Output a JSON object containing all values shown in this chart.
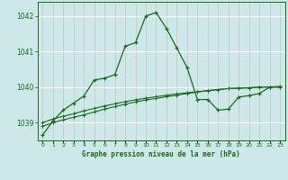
{
  "title": "Graphe pression niveau de la mer (hPa)",
  "bg_color": "#cce8e8",
  "plot_bg_color": "#cce8e8",
  "line_color": "#1a6b1a",
  "grid_color_v": "#ddb8b8",
  "grid_color_h": "#ffffff",
  "xlim": [
    -0.5,
    23.5
  ],
  "ylim": [
    1038.5,
    1042.4
  ],
  "yticks": [
    1039,
    1040,
    1041,
    1042
  ],
  "xticks": [
    0,
    1,
    2,
    3,
    4,
    5,
    6,
    7,
    8,
    9,
    10,
    11,
    12,
    13,
    14,
    15,
    16,
    17,
    18,
    19,
    20,
    21,
    22,
    23
  ],
  "series1_x": [
    0,
    1,
    2,
    3,
    4,
    5,
    6,
    7,
    8,
    9,
    10,
    11,
    12,
    13,
    14,
    15,
    16,
    17,
    18,
    19,
    20,
    21,
    22,
    23
  ],
  "series1_y": [
    1038.65,
    1039.05,
    1039.35,
    1039.55,
    1039.75,
    1040.2,
    1040.25,
    1040.35,
    1041.15,
    1041.25,
    1042.0,
    1042.1,
    1041.65,
    1041.1,
    1040.55,
    1039.65,
    1039.65,
    1039.35,
    1039.38,
    1039.72,
    1039.76,
    1039.82,
    1040.0,
    1040.02
  ],
  "series2_x": [
    0,
    1,
    2,
    3,
    4,
    5,
    6,
    7,
    8,
    9,
    10,
    11,
    12,
    13,
    14,
    15,
    16,
    17,
    18,
    19,
    20,
    21,
    22,
    23
  ],
  "series2_y": [
    1038.9,
    1039.0,
    1039.08,
    1039.15,
    1039.22,
    1039.3,
    1039.38,
    1039.45,
    1039.52,
    1039.58,
    1039.64,
    1039.68,
    1039.73,
    1039.77,
    1039.82,
    1039.86,
    1039.9,
    1039.93,
    1039.96,
    1039.97,
    1039.98,
    1040.0,
    1040.0,
    1040.0
  ],
  "series3_x": [
    0,
    1,
    2,
    3,
    4,
    5,
    6,
    7,
    8,
    9,
    10,
    11,
    12,
    13,
    14,
    15,
    16,
    17,
    18,
    19,
    20,
    21,
    22,
    23
  ],
  "series3_y": [
    1039.0,
    1039.1,
    1039.18,
    1039.25,
    1039.33,
    1039.4,
    1039.47,
    1039.53,
    1039.59,
    1039.64,
    1039.69,
    1039.73,
    1039.77,
    1039.81,
    1039.84,
    1039.87,
    1039.9,
    1039.93,
    1039.96,
    1039.97,
    1039.98,
    1040.0,
    1040.0,
    1040.0
  ]
}
